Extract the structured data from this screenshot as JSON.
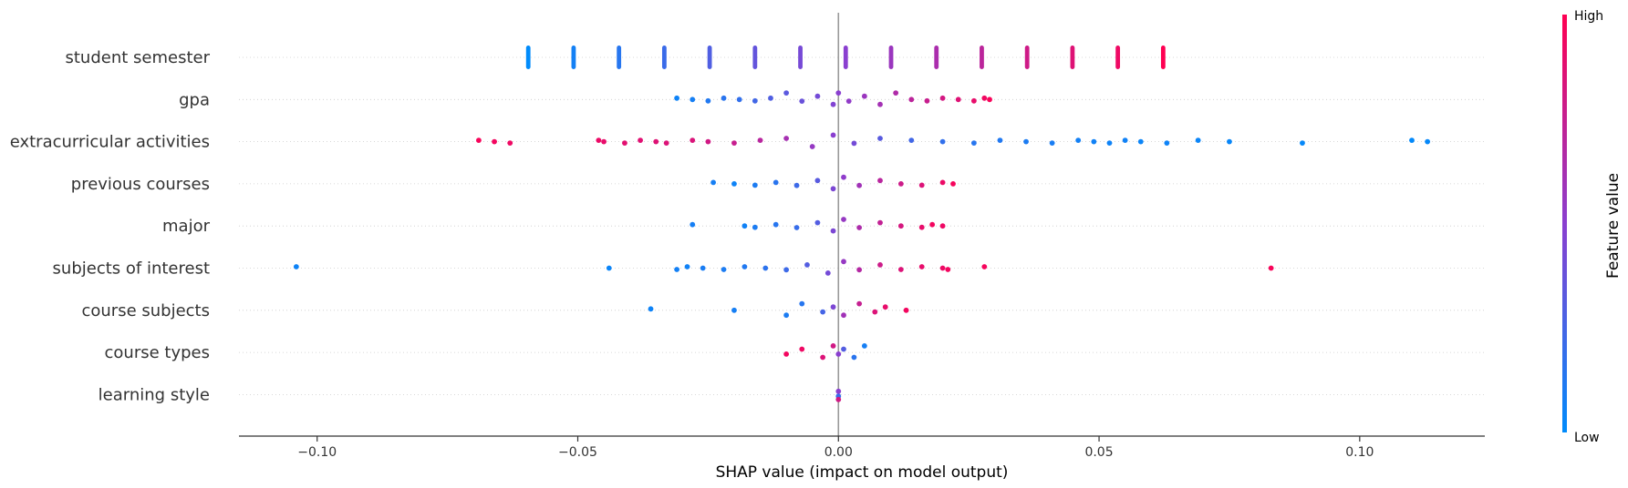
{
  "chart_data": {
    "type": "scatter",
    "subtype": "shap-beeswarm",
    "title": "",
    "xlabel": "SHAP value (impact on model output)",
    "ylabel": "",
    "xlim": [
      -0.115,
      0.124
    ],
    "xticks": [
      -0.1,
      -0.05,
      0.0,
      0.05,
      0.1
    ],
    "xtick_labels": [
      "−0.10",
      "−0.05",
      "0.00",
      "0.05",
      "0.10"
    ],
    "grid": "horizontal dotted guide per feature",
    "zero_line": true,
    "features": [
      {
        "name": "student semester",
        "points": [
          [
            -0.0595,
            0.0
          ],
          [
            -0.0508,
            0.07
          ],
          [
            -0.0421,
            0.14
          ],
          [
            -0.0334,
            0.21
          ],
          [
            -0.0247,
            0.29
          ],
          [
            -0.016,
            0.36
          ],
          [
            -0.0073,
            0.43
          ],
          [
            0.0014,
            0.5
          ],
          [
            0.0101,
            0.57
          ],
          [
            0.0188,
            0.64
          ],
          [
            0.0275,
            0.71
          ],
          [
            0.0362,
            0.79
          ],
          [
            0.0449,
            0.86
          ],
          [
            0.0536,
            0.93
          ],
          [
            0.0623,
            1.0
          ]
        ]
      },
      {
        "name": "gpa",
        "points": [
          [
            -0.031,
            0.05
          ],
          [
            -0.028,
            0.08
          ],
          [
            -0.025,
            0.12
          ],
          [
            -0.022,
            0.15
          ],
          [
            -0.019,
            0.18
          ],
          [
            -0.016,
            0.24
          ],
          [
            -0.013,
            0.29
          ],
          [
            -0.01,
            0.33
          ],
          [
            -0.007,
            0.38
          ],
          [
            -0.004,
            0.42
          ],
          [
            -0.001,
            0.47
          ],
          [
            0.0,
            0.5
          ],
          [
            0.002,
            0.53
          ],
          [
            0.005,
            0.57
          ],
          [
            0.008,
            0.61
          ],
          [
            0.011,
            0.66
          ],
          [
            0.014,
            0.71
          ],
          [
            0.017,
            0.76
          ],
          [
            0.02,
            0.81
          ],
          [
            0.023,
            0.86
          ],
          [
            0.026,
            0.9
          ],
          [
            0.028,
            0.94
          ],
          [
            0.029,
            0.97
          ]
        ]
      },
      {
        "name": "extracurricular activities",
        "points": [
          [
            -0.069,
            0.97
          ],
          [
            -0.066,
            0.95
          ],
          [
            -0.063,
            0.93
          ],
          [
            -0.046,
            0.92
          ],
          [
            -0.045,
            0.9
          ],
          [
            -0.041,
            0.88
          ],
          [
            -0.038,
            0.87
          ],
          [
            -0.035,
            0.86
          ],
          [
            -0.033,
            0.85
          ],
          [
            -0.028,
            0.84
          ],
          [
            -0.025,
            0.8
          ],
          [
            -0.02,
            0.76
          ],
          [
            -0.015,
            0.7
          ],
          [
            -0.01,
            0.62
          ],
          [
            -0.005,
            0.55
          ],
          [
            -0.001,
            0.5
          ],
          [
            0.003,
            0.42
          ],
          [
            0.008,
            0.32
          ],
          [
            0.014,
            0.24
          ],
          [
            0.02,
            0.18
          ],
          [
            0.026,
            0.14
          ],
          [
            0.031,
            0.12
          ],
          [
            0.036,
            0.1
          ],
          [
            0.041,
            0.09
          ],
          [
            0.046,
            0.07
          ],
          [
            0.049,
            0.06
          ],
          [
            0.052,
            0.05
          ],
          [
            0.055,
            0.06
          ],
          [
            0.058,
            0.04
          ],
          [
            0.063,
            0.05
          ],
          [
            0.069,
            0.04
          ],
          [
            0.075,
            0.03
          ],
          [
            0.089,
            0.02
          ],
          [
            0.11,
            0.01
          ],
          [
            0.113,
            0.02
          ]
        ]
      },
      {
        "name": "previous courses",
        "points": [
          [
            -0.024,
            0.08
          ],
          [
            -0.02,
            0.05
          ],
          [
            -0.016,
            0.1
          ],
          [
            -0.012,
            0.15
          ],
          [
            -0.008,
            0.22
          ],
          [
            -0.004,
            0.32
          ],
          [
            -0.001,
            0.45
          ],
          [
            0.001,
            0.52
          ],
          [
            0.004,
            0.6
          ],
          [
            0.008,
            0.7
          ],
          [
            0.012,
            0.78
          ],
          [
            0.016,
            0.85
          ],
          [
            0.02,
            0.92
          ],
          [
            0.022,
            0.96
          ]
        ]
      },
      {
        "name": "major",
        "points": [
          [
            -0.028,
            0.08
          ],
          [
            -0.018,
            0.06
          ],
          [
            -0.016,
            0.1
          ],
          [
            -0.012,
            0.14
          ],
          [
            -0.008,
            0.2
          ],
          [
            -0.004,
            0.3
          ],
          [
            -0.001,
            0.45
          ],
          [
            0.001,
            0.55
          ],
          [
            0.004,
            0.65
          ],
          [
            0.008,
            0.74
          ],
          [
            0.012,
            0.82
          ],
          [
            0.016,
            0.9
          ],
          [
            0.018,
            0.95
          ],
          [
            0.02,
            0.93
          ]
        ]
      },
      {
        "name": "subjects of interest",
        "points": [
          [
            -0.104,
            0.05
          ],
          [
            -0.044,
            0.04
          ],
          [
            -0.031,
            0.07
          ],
          [
            -0.029,
            0.06
          ],
          [
            -0.026,
            0.09
          ],
          [
            -0.022,
            0.1
          ],
          [
            -0.018,
            0.12
          ],
          [
            -0.014,
            0.16
          ],
          [
            -0.01,
            0.22
          ],
          [
            -0.006,
            0.3
          ],
          [
            -0.002,
            0.42
          ],
          [
            0.001,
            0.55
          ],
          [
            0.004,
            0.68
          ],
          [
            0.008,
            0.78
          ],
          [
            0.012,
            0.85
          ],
          [
            0.016,
            0.9
          ],
          [
            0.02,
            0.93
          ],
          [
            0.021,
            0.95
          ],
          [
            0.028,
            0.96
          ],
          [
            0.083,
            0.97
          ]
        ]
      },
      {
        "name": "course subjects",
        "points": [
          [
            -0.036,
            0.05
          ],
          [
            -0.02,
            0.08
          ],
          [
            -0.01,
            0.1
          ],
          [
            -0.007,
            0.14
          ],
          [
            -0.003,
            0.25
          ],
          [
            -0.001,
            0.45
          ],
          [
            0.001,
            0.6
          ],
          [
            0.004,
            0.75
          ],
          [
            0.007,
            0.85
          ],
          [
            0.009,
            0.9
          ],
          [
            0.013,
            0.95
          ]
        ]
      },
      {
        "name": "course types",
        "points": [
          [
            -0.01,
            0.95
          ],
          [
            -0.007,
            0.93
          ],
          [
            -0.003,
            0.85
          ],
          [
            -0.001,
            0.8
          ],
          [
            0.0,
            0.5
          ],
          [
            0.001,
            0.3
          ],
          [
            0.003,
            0.15
          ],
          [
            0.005,
            0.08
          ]
        ]
      },
      {
        "name": "learning style",
        "points": [
          [
            0.0,
            0.2
          ],
          [
            0.0,
            0.5
          ],
          [
            0.0,
            0.8
          ]
        ]
      }
    ],
    "colorbar": {
      "title": "Feature value",
      "high_label": "High",
      "low_label": "Low",
      "low_color": "#008bfb",
      "mid_color": "#8a3fd0",
      "high_color": "#ff0052"
    }
  }
}
